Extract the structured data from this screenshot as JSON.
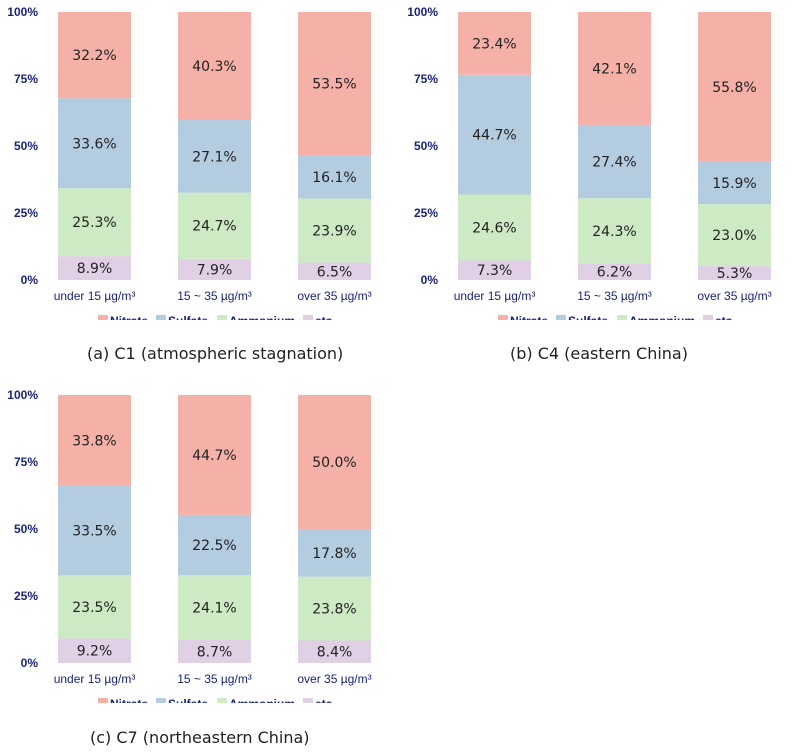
{
  "colors": {
    "Nitrate": "#f5b0a8",
    "Sulfate": "#b4cce0",
    "Ammonium": "#cdeac4",
    "etc": "#e1cfe6",
    "axis_text": "#1a237e"
  },
  "chart_data": [
    {
      "type": "bar",
      "stacked": true,
      "caption": "(a) C1 (atmospheric stagnation)",
      "yticks": [
        "0%",
        "25%",
        "50%",
        "75%",
        "100%"
      ],
      "ylim": [
        0,
        100
      ],
      "categories": [
        "under 15 µg/m³",
        "15 ~ 35 µg/m³",
        "over 35 µg/m³"
      ],
      "series": [
        {
          "name": "etc",
          "values": [
            8.9,
            7.9,
            6.5
          ],
          "labels": [
            "8.9%",
            "7.9%",
            "6.5%"
          ]
        },
        {
          "name": "Ammonium",
          "values": [
            25.3,
            24.7,
            23.9
          ],
          "labels": [
            "25.3%",
            "24.7%",
            "23.9%"
          ]
        },
        {
          "name": "Sulfate",
          "values": [
            33.6,
            27.1,
            16.1
          ],
          "labels": [
            "33.6%",
            "27.1%",
            "16.1%"
          ]
        },
        {
          "name": "Nitrate",
          "values": [
            32.2,
            40.3,
            53.5
          ],
          "labels": [
            "32.2%",
            "40.3%",
            "53.5%"
          ]
        }
      ],
      "legend": [
        "Nitrate",
        "Sulfate",
        "Ammonium",
        "etc"
      ]
    },
    {
      "type": "bar",
      "stacked": true,
      "caption": "(b) C4 (eastern China)",
      "yticks": [
        "0%",
        "25%",
        "50%",
        "75%",
        "100%"
      ],
      "ylim": [
        0,
        100
      ],
      "categories": [
        "under 15 µg/m³",
        "15 ~ 35 µg/m³",
        "over 35 µg/m³"
      ],
      "series": [
        {
          "name": "etc",
          "values": [
            7.3,
            6.2,
            5.3
          ],
          "labels": [
            "7.3%",
            "6.2%",
            "5.3%"
          ]
        },
        {
          "name": "Ammonium",
          "values": [
            24.6,
            24.3,
            23.0
          ],
          "labels": [
            "24.6%",
            "24.3%",
            "23.0%"
          ]
        },
        {
          "name": "Sulfate",
          "values": [
            44.7,
            27.4,
            15.9
          ],
          "labels": [
            "44.7%",
            "27.4%",
            "15.9%"
          ]
        },
        {
          "name": "Nitrate",
          "values": [
            23.4,
            42.1,
            55.8
          ],
          "labels": [
            "23.4%",
            "42.1%",
            "55.8%"
          ]
        }
      ],
      "legend": [
        "Nitrate",
        "Sulfate",
        "Ammonium",
        "etc"
      ]
    },
    {
      "type": "bar",
      "stacked": true,
      "caption": "(c) C7 (northeastern China)",
      "yticks": [
        "0%",
        "25%",
        "50%",
        "75%",
        "100%"
      ],
      "ylim": [
        0,
        100
      ],
      "categories": [
        "under 15 µg/m³",
        "15 ~ 35 µg/m³",
        "over 35 µg/m³"
      ],
      "series": [
        {
          "name": "etc",
          "values": [
            9.2,
            8.7,
            8.4
          ],
          "labels": [
            "9.2%",
            "8.7%",
            "8.4%"
          ]
        },
        {
          "name": "Ammonium",
          "values": [
            23.5,
            24.1,
            23.8
          ],
          "labels": [
            "23.5%",
            "24.1%",
            "23.8%"
          ]
        },
        {
          "name": "Sulfate",
          "values": [
            33.5,
            22.5,
            17.8
          ],
          "labels": [
            "33.5%",
            "22.5%",
            "17.8%"
          ]
        },
        {
          "name": "Nitrate",
          "values": [
            33.8,
            44.7,
            50.0
          ],
          "labels": [
            "33.8%",
            "44.7%",
            "50.0%"
          ]
        }
      ],
      "legend": [
        "Nitrate",
        "Sulfate",
        "Ammonium",
        "etc"
      ]
    }
  ]
}
